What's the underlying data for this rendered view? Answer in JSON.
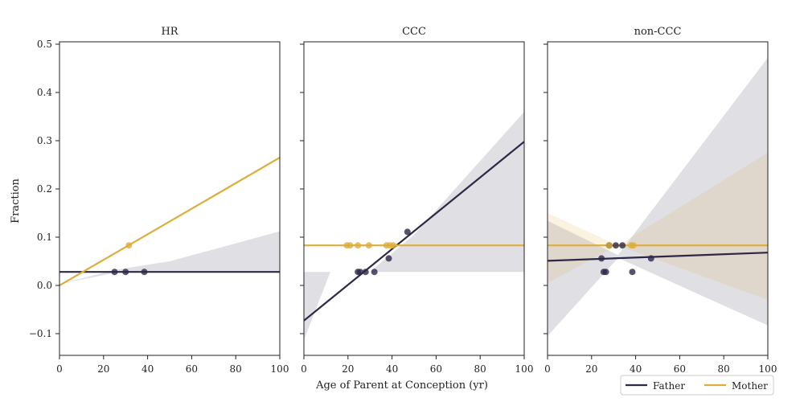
{
  "figure": {
    "ylabel": "Fraction",
    "xlabel": "Age of Parent at Conception (yr)",
    "xlim": [
      0,
      100
    ],
    "ylim": [
      -0.145,
      0.505
    ],
    "xticks": [
      0,
      20,
      40,
      60,
      80,
      100
    ],
    "yticks": [
      -0.1,
      0.0,
      0.1,
      0.2,
      0.3,
      0.4,
      0.5
    ],
    "ytick_labels": [
      "−0.1",
      "0.0",
      "0.1",
      "0.2",
      "0.3",
      "0.4",
      "0.5"
    ],
    "colors": {
      "father": "#2e2747",
      "mother": "#dcae3c"
    },
    "legend": {
      "placement": "bottom-right",
      "entries": [
        {
          "key": "father",
          "label": "Father"
        },
        {
          "key": "mother",
          "label": "Mother"
        }
      ]
    }
  },
  "chart_data": [
    {
      "type": "scatter",
      "title": "HR",
      "series": [
        {
          "name": "Father",
          "key": "father",
          "points": [
            [
              25,
              0.028
            ],
            [
              30,
              0.028
            ],
            [
              38.5,
              0.028
            ]
          ],
          "fit": {
            "x": [
              0,
              100
            ],
            "y": [
              0.028,
              0.028
            ]
          },
          "ci": {
            "x": [
              0,
              25,
              50,
              100
            ],
            "lower": [
              0.003,
              0.026,
              0.028,
              0.028
            ],
            "upper": [
              0.003,
              0.032,
              0.05,
              0.112
            ]
          }
        },
        {
          "name": "Mother",
          "key": "mother",
          "points": [
            [
              31.5,
              0.083
            ]
          ],
          "fit": {
            "x": [
              0,
              100
            ],
            "y": [
              0.0,
              0.265
            ]
          },
          "ci": null
        }
      ]
    },
    {
      "type": "scatter",
      "title": "CCC",
      "series": [
        {
          "name": "Father",
          "key": "father",
          "points": [
            [
              24.5,
              0.028
            ],
            [
              25.5,
              0.028
            ],
            [
              28,
              0.028
            ],
            [
              32,
              0.028
            ],
            [
              38.5,
              0.056
            ],
            [
              47,
              0.111
            ]
          ],
          "fit": {
            "x": [
              0,
              100
            ],
            "y": [
              -0.073,
              0.298
            ]
          },
          "ci": {
            "x": [
              0,
              12,
              30,
              50,
              100
            ],
            "lower": [
              -0.113,
              0.028,
              0.028,
              0.028,
              0.028
            ],
            "upper": [
              0.028,
              0.028,
              0.028,
              0.105,
              0.36
            ]
          }
        },
        {
          "name": "Mother",
          "key": "mother",
          "points": [
            [
              19.5,
              0.083
            ],
            [
              21,
              0.083
            ],
            [
              24.5,
              0.083
            ],
            [
              29.5,
              0.083
            ],
            [
              37.5,
              0.083
            ],
            [
              39,
              0.083
            ],
            [
              40.5,
              0.083
            ]
          ],
          "fit": {
            "x": [
              0,
              100
            ],
            "y": [
              0.083,
              0.083
            ]
          },
          "ci": null
        }
      ]
    },
    {
      "type": "scatter",
      "title": "non-CCC",
      "series": [
        {
          "name": "Father",
          "key": "father",
          "points": [
            [
              24.5,
              0.056
            ],
            [
              25.5,
              0.028
            ],
            [
              26.5,
              0.028
            ],
            [
              28,
              0.083
            ],
            [
              31,
              0.083
            ],
            [
              34,
              0.083
            ],
            [
              38.5,
              0.028
            ],
            [
              47,
              0.056
            ]
          ],
          "fit": {
            "x": [
              0,
              100
            ],
            "y": [
              0.051,
              0.068
            ]
          },
          "ci": {
            "x": [
              0,
              32,
              100
            ],
            "lower": [
              -0.105,
              0.057,
              -0.083
            ],
            "upper": [
              0.134,
              0.063,
              0.472
            ]
          }
        },
        {
          "name": "Mother",
          "key": "mother",
          "points": [
            [
              28,
              0.083
            ],
            [
              38,
              0.083
            ],
            [
              39,
              0.083
            ]
          ],
          "fit": {
            "x": [
              0,
              100
            ],
            "y": [
              0.083,
              0.083
            ]
          },
          "ci": {
            "x": [
              0,
              32,
              100
            ],
            "lower": [
              0.005,
              0.083,
              -0.03
            ],
            "upper": [
              0.15,
              0.083,
              0.275
            ]
          }
        }
      ]
    }
  ]
}
